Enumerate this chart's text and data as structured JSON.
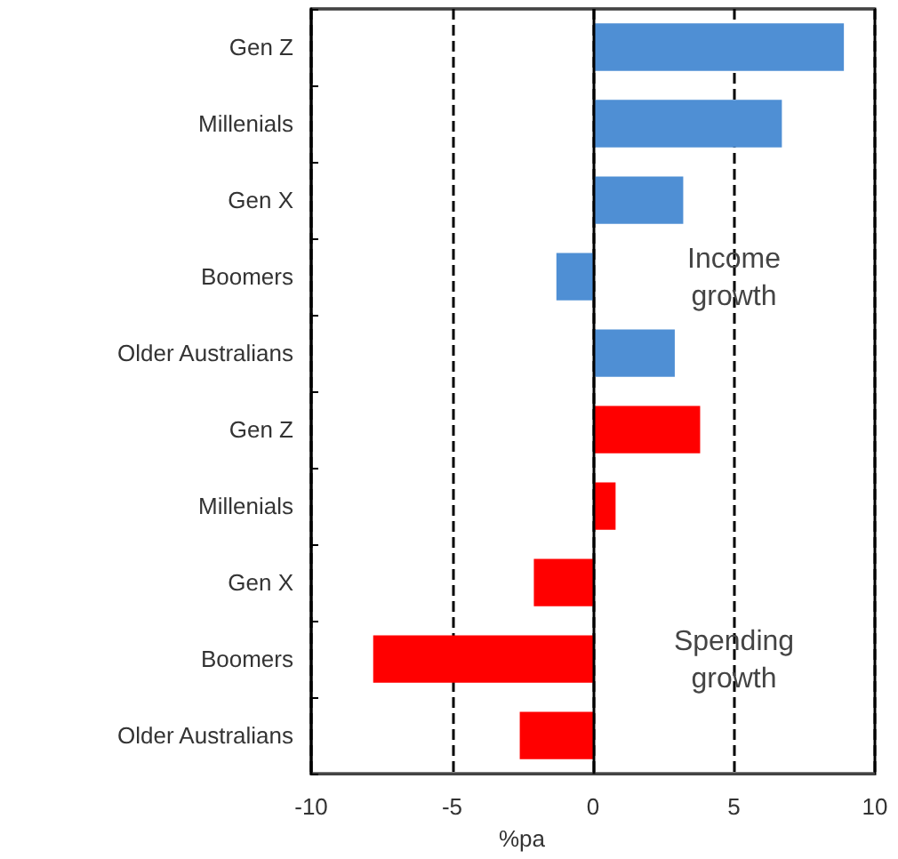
{
  "chart_data": {
    "type": "bar",
    "orientation": "horizontal",
    "categories": [
      "Gen Z",
      "Millenials",
      "Gen X",
      "Boomers",
      "Older Australians",
      "Gen Z",
      "Millenials",
      "Gen X",
      "Boomers",
      "Older Australians"
    ],
    "series": [
      {
        "name": "Income\ngrowth",
        "color": "#4f8fd4",
        "values": [
          8.9,
          6.7,
          3.2,
          -1.3,
          2.9,
          null,
          null,
          null,
          null,
          null
        ]
      },
      {
        "name": "Spending\ngrowth",
        "color": "#ff0000",
        "values": [
          null,
          null,
          null,
          null,
          null,
          3.8,
          0.8,
          -2.1,
          -7.8,
          -2.6
        ]
      }
    ],
    "ref_lines": [
      {
        "axis": "x",
        "value": 0,
        "color": "#000000",
        "line_style": "solid"
      }
    ],
    "xlim": [
      -10,
      10
    ],
    "xticks": [
      -10,
      -5,
      0,
      5,
      10
    ],
    "grid": "x",
    "line_style": "dashed",
    "xlabel": "%pa"
  }
}
